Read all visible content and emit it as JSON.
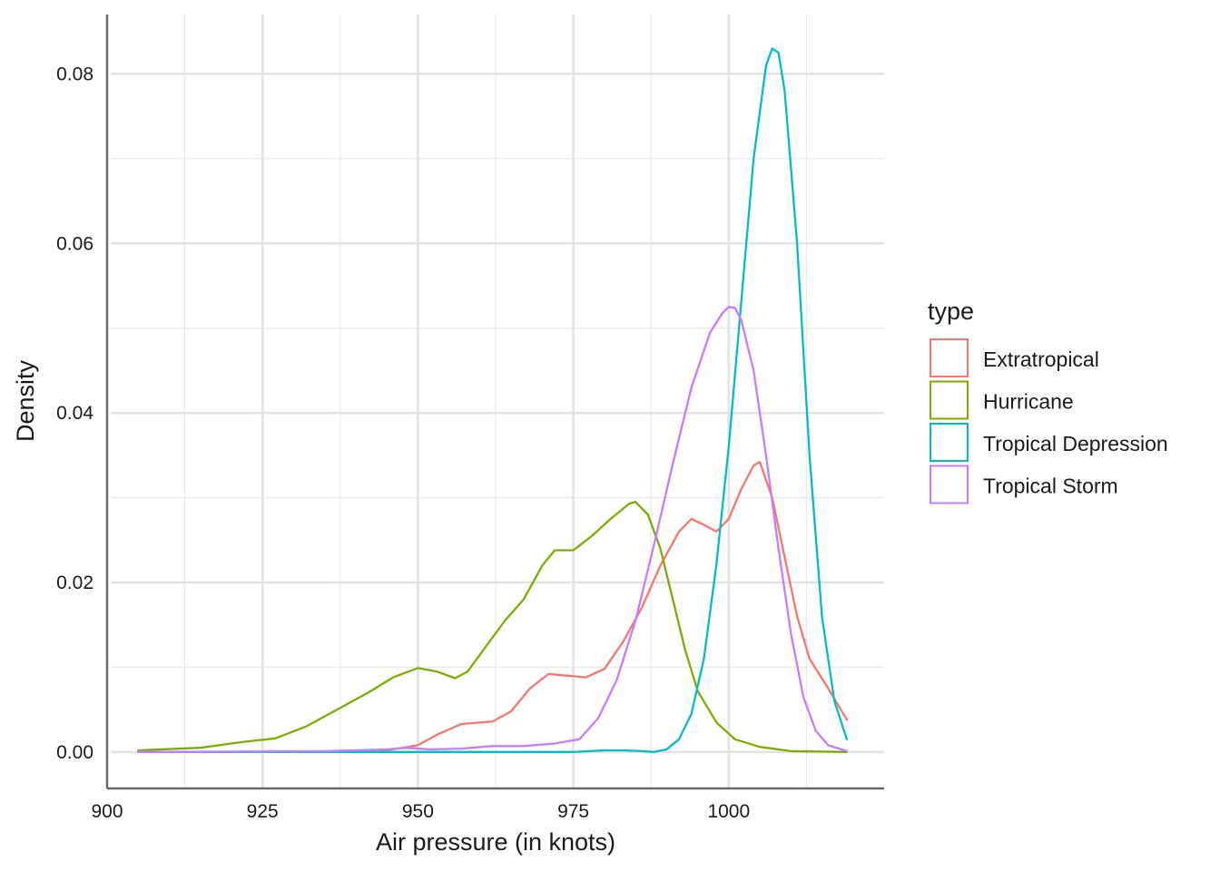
{
  "chart_data": {
    "type": "line",
    "title": "",
    "xlabel": "Air pressure (in knots)",
    "ylabel": "Density",
    "xlim": [
      900,
      1025
    ],
    "ylim": [
      -0.0043,
      0.087
    ],
    "x_ticks": [
      900,
      925,
      950,
      975,
      1000
    ],
    "x_tick_labels": [
      "900",
      "925",
      "950",
      "975",
      "1000"
    ],
    "y_ticks": [
      0.0,
      0.02,
      0.04,
      0.06,
      0.08
    ],
    "y_tick_labels": [
      "0.00",
      "0.02",
      "0.04",
      "0.06",
      "0.08"
    ],
    "grid": true,
    "legend": {
      "title": "type",
      "position": "right"
    },
    "series": [
      {
        "name": "Extratropical",
        "color": "#F8766D",
        "x": [
          905,
          930,
          945,
          950,
          953,
          957,
          962,
          965,
          968,
          971,
          974,
          977,
          980,
          983,
          986,
          989,
          992,
          994,
          996,
          998,
          1000,
          1002,
          1004,
          1005,
          1007,
          1009,
          1011,
          1013,
          1016,
          1019
        ],
        "y": [
          0.0,
          0.0,
          0.0002,
          0.0008,
          0.002,
          0.0033,
          0.0036,
          0.0048,
          0.0075,
          0.0092,
          0.009,
          0.0088,
          0.0098,
          0.013,
          0.017,
          0.022,
          0.026,
          0.0275,
          0.0268,
          0.026,
          0.0275,
          0.031,
          0.0338,
          0.0342,
          0.03,
          0.023,
          0.016,
          0.011,
          0.0075,
          0.0038
        ]
      },
      {
        "name": "Hurricane",
        "color": "#7CAE00",
        "x": [
          905,
          915,
          922,
          927,
          932,
          937,
          942,
          946,
          950,
          953,
          956,
          958,
          961,
          964,
          967,
          970,
          972,
          975,
          978,
          981,
          984,
          985,
          987,
          989,
          991,
          993,
          995,
          998,
          1001,
          1005,
          1010,
          1019
        ],
        "y": [
          0.0002,
          0.0005,
          0.0012,
          0.0016,
          0.003,
          0.005,
          0.007,
          0.0088,
          0.0099,
          0.0095,
          0.0087,
          0.0095,
          0.0125,
          0.0155,
          0.018,
          0.022,
          0.0238,
          0.0238,
          0.0255,
          0.0275,
          0.0293,
          0.0295,
          0.028,
          0.024,
          0.018,
          0.012,
          0.0072,
          0.0035,
          0.0015,
          0.0006,
          0.0001,
          0.0
        ]
      },
      {
        "name": "Tropical Depression",
        "color": "#00BFC4",
        "x": [
          905,
          975,
          980,
          983,
          986,
          988,
          990,
          992,
          994,
          996,
          998,
          1000,
          1002,
          1004,
          1006,
          1007,
          1008,
          1009,
          1011,
          1013,
          1015,
          1017,
          1019
        ],
        "y": [
          0.0,
          0.0,
          0.0002,
          0.0002,
          0.0001,
          0.0,
          0.0003,
          0.0015,
          0.0045,
          0.011,
          0.022,
          0.036,
          0.053,
          0.07,
          0.081,
          0.083,
          0.0825,
          0.078,
          0.06,
          0.035,
          0.016,
          0.006,
          0.0015
        ]
      },
      {
        "name": "Tropical Storm",
        "color": "#C77CFF",
        "x": [
          905,
          935,
          945,
          948,
          952,
          957,
          962,
          967,
          972,
          976,
          979,
          982,
          985,
          988,
          991,
          994,
          997,
          999,
          1000,
          1001,
          1002,
          1004,
          1006,
          1008,
          1010,
          1012,
          1014,
          1016,
          1019
        ],
        "y": [
          0.0,
          0.0001,
          0.0003,
          0.0005,
          0.0003,
          0.0004,
          0.0007,
          0.0007,
          0.001,
          0.0015,
          0.004,
          0.0085,
          0.0155,
          0.0245,
          0.034,
          0.043,
          0.0495,
          0.0518,
          0.0525,
          0.0524,
          0.051,
          0.045,
          0.035,
          0.024,
          0.014,
          0.0065,
          0.0025,
          0.0008,
          0.0001
        ]
      }
    ]
  }
}
